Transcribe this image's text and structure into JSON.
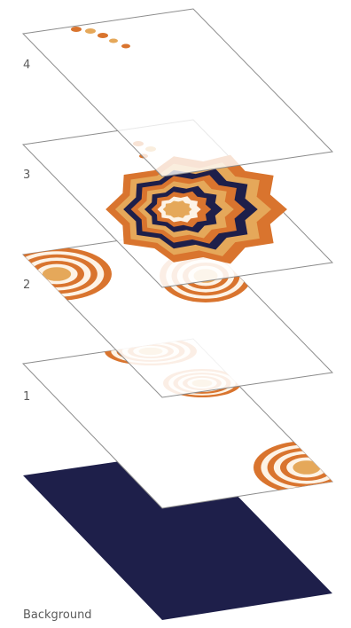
{
  "layers": [
    {
      "label": "4"
    },
    {
      "label": "3"
    },
    {
      "label": "2"
    },
    {
      "label": "1"
    }
  ],
  "background_label": "Background",
  "colors": {
    "navy": "#1e1f4a",
    "orange": "#d9742e",
    "sand": "#e5a85a",
    "cream": "#fdf3e6",
    "outline": "#8c8c8c",
    "text": "#5b5b5b"
  }
}
